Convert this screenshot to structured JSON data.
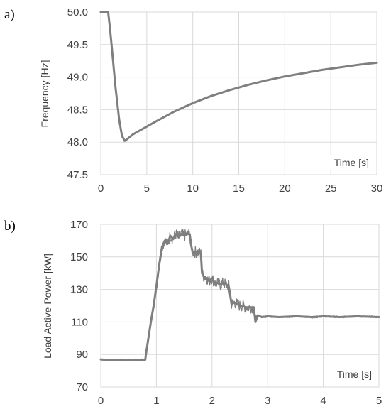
{
  "chart_data": [
    {
      "type": "line",
      "panel_label": "a)",
      "title": "",
      "xlabel": "Time [s]",
      "ylabel": "Frequency [Hz]",
      "xlim": [
        0,
        30
      ],
      "ylim": [
        47.5,
        50.0
      ],
      "x_ticks": [
        "0",
        "5",
        "10",
        "15",
        "20",
        "25",
        "30"
      ],
      "y_ticks": [
        "50.0",
        "49.5",
        "49.0",
        "48.5",
        "48.0",
        "47.5"
      ],
      "grid": true,
      "series_color": "#7f7f7f",
      "series": [
        {
          "x": [
            0,
            0.8,
            1.0,
            1.3,
            1.6,
            2.0,
            2.3,
            2.6,
            2.9,
            3.5,
            4.5,
            6,
            8,
            10,
            12,
            14,
            16,
            18,
            20,
            22,
            24,
            26,
            28,
            30
          ],
          "values": [
            50.0,
            50.0,
            49.75,
            49.3,
            48.85,
            48.35,
            48.1,
            48.02,
            48.05,
            48.12,
            48.2,
            48.32,
            48.47,
            48.6,
            48.71,
            48.8,
            48.88,
            48.95,
            49.01,
            49.06,
            49.11,
            49.15,
            49.19,
            49.22
          ]
        }
      ]
    },
    {
      "type": "line",
      "panel_label": "b)",
      "title": "",
      "xlabel": "Time [s]",
      "ylabel": "Load Active Power [kW]",
      "xlim": [
        0,
        5
      ],
      "ylim": [
        70,
        170
      ],
      "x_ticks": [
        "0",
        "1",
        "2",
        "3",
        "4",
        "5"
      ],
      "y_ticks": [
        "170",
        "150",
        "130",
        "110",
        "90",
        "70"
      ],
      "grid": true,
      "series_color": "#7f7f7f",
      "series": [
        {
          "x": [
            0,
            0.2,
            0.4,
            0.6,
            0.8,
            0.82,
            0.9,
            0.95,
            1.0,
            1.05,
            1.1,
            1.15,
            1.2,
            1.25,
            1.3,
            1.35,
            1.4,
            1.45,
            1.5,
            1.55,
            1.6,
            1.62,
            1.65,
            1.7,
            1.75,
            1.8,
            1.82,
            1.85,
            1.9,
            1.95,
            2.0,
            2.05,
            2.1,
            2.15,
            2.2,
            2.25,
            2.3,
            2.32,
            2.35,
            2.4,
            2.45,
            2.5,
            2.55,
            2.6,
            2.65,
            2.7,
            2.75,
            2.78,
            2.82,
            2.9,
            3.0,
            3.2,
            3.5,
            3.8,
            4.0,
            4.3,
            4.6,
            5.0
          ],
          "values": [
            87,
            86.5,
            86.8,
            86.6,
            86.8,
            92,
            110,
            120,
            132,
            145,
            156,
            160,
            158,
            163,
            161,
            164,
            162,
            164,
            163,
            164,
            164,
            158,
            153,
            153,
            153,
            152,
            140,
            138,
            137,
            135,
            137,
            134,
            134,
            133,
            134,
            133,
            132,
            128,
            121,
            122,
            121,
            120,
            120,
            119,
            119,
            119,
            119,
            110,
            114,
            113,
            113.5,
            113,
            113.5,
            113,
            113.5,
            113,
            113.5,
            113
          ]
        }
      ]
    }
  ]
}
